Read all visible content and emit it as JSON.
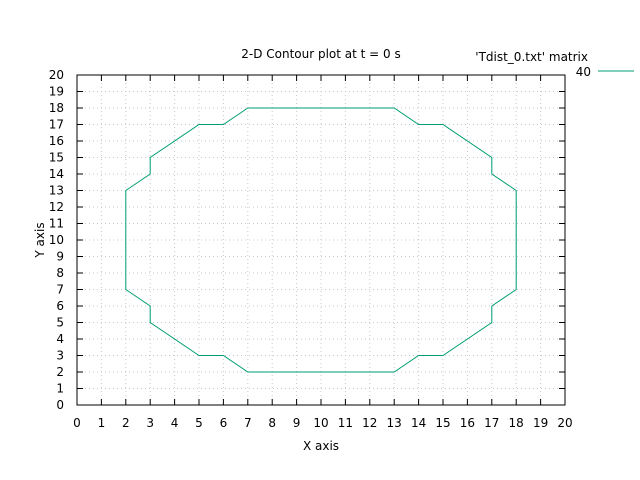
{
  "chart_data": {
    "type": "line",
    "title": "2-D Contour plot at t = 0 s",
    "xlabel": "X axis",
    "ylabel": "Y axis",
    "xlim": [
      0,
      20
    ],
    "ylim": [
      0,
      20
    ],
    "xticks": [
      0,
      1,
      2,
      3,
      4,
      5,
      6,
      7,
      8,
      9,
      10,
      11,
      12,
      13,
      14,
      15,
      16,
      17,
      18,
      19,
      20
    ],
    "yticks": [
      0,
      1,
      2,
      3,
      4,
      5,
      6,
      7,
      8,
      9,
      10,
      11,
      12,
      13,
      14,
      15,
      16,
      17,
      18,
      19,
      20
    ],
    "grid": true,
    "legend_title": "'Tdist_0.txt' matrix",
    "legend_position": "top-right",
    "series": [
      {
        "name": "40",
        "color": "#009e73",
        "x": [
          7,
          13,
          14,
          15,
          17,
          17,
          18,
          18,
          17,
          17,
          15,
          14,
          13,
          7,
          6,
          5,
          3,
          3,
          2,
          2,
          3,
          3,
          5,
          6,
          7
        ],
        "y": [
          18,
          18,
          17,
          17,
          15,
          14,
          13,
          7,
          6,
          5,
          3,
          3,
          2,
          2,
          3,
          3,
          5,
          6,
          7,
          13,
          14,
          15,
          17,
          17,
          18
        ]
      }
    ]
  }
}
